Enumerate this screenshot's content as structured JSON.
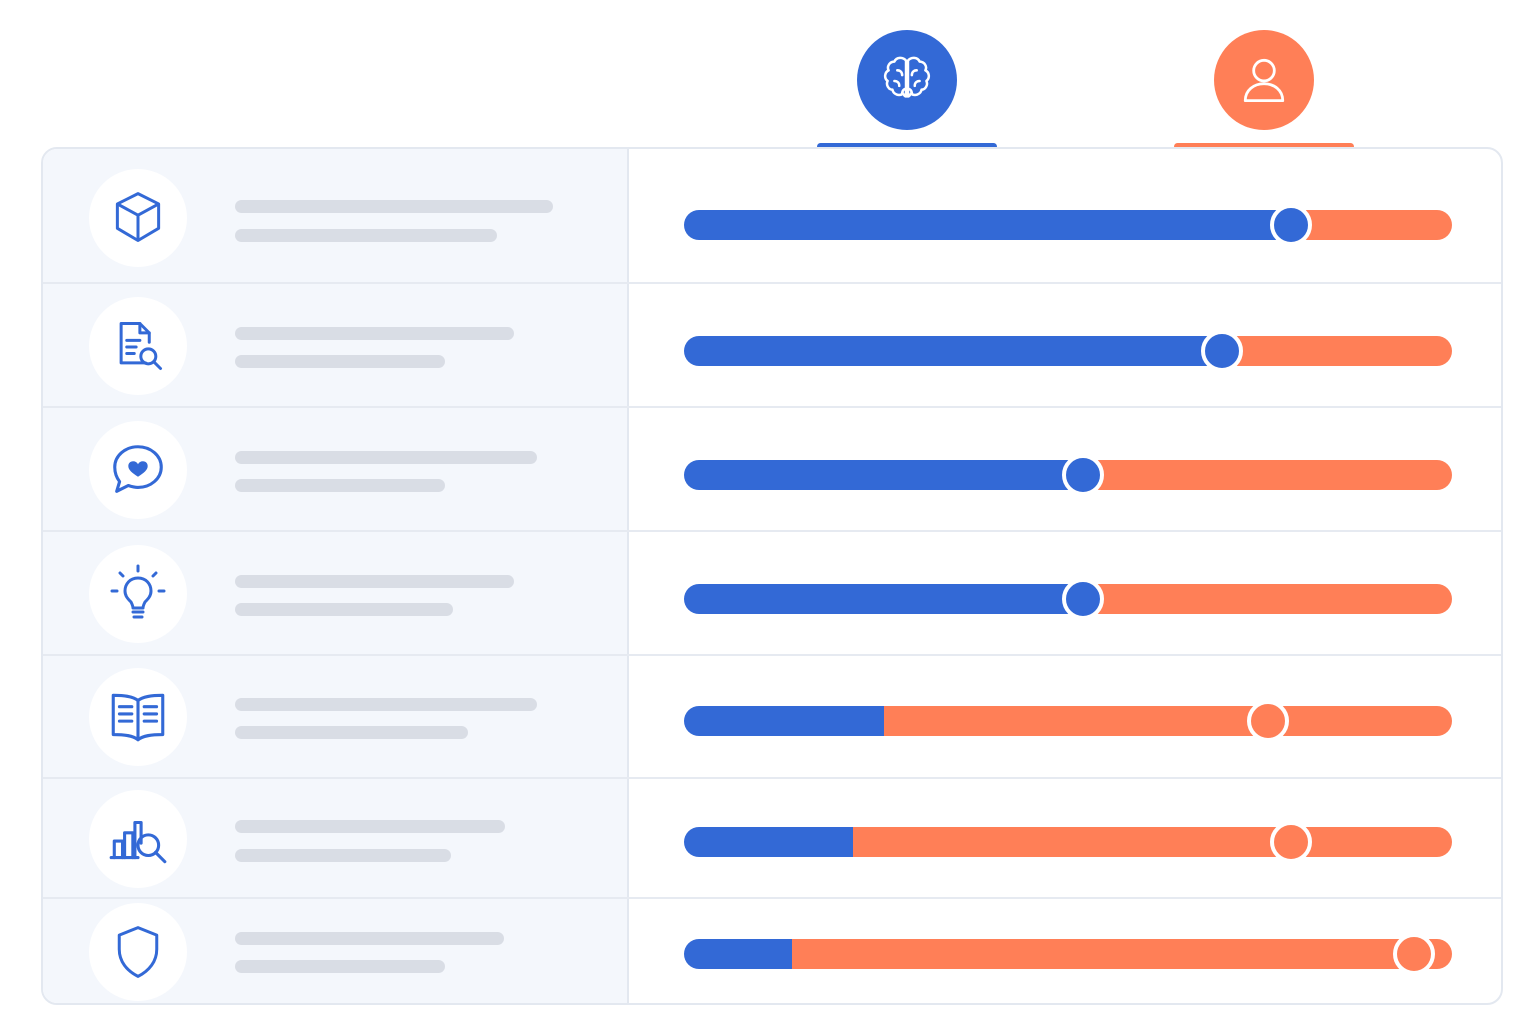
{
  "colors": {
    "ai": "#3369d6",
    "human": "#ff7f57",
    "line": "#d9dde5",
    "icon_stroke": "#3369d6"
  },
  "header": {
    "columns": [
      {
        "id": "ai",
        "icon": "brain-icon"
      },
      {
        "id": "human",
        "icon": "user-icon"
      }
    ]
  },
  "chart_data": {
    "type": "bar",
    "orientation": "horizontal",
    "stacked": true,
    "categories": [
      "",
      "",
      "",
      "",
      "",
      "",
      ""
    ],
    "row_icons": [
      "cube-icon",
      "document-search-icon",
      "chat-heart-icon",
      "lightbulb-icon",
      "open-book-icon",
      "bar-chart-search-icon",
      "shield-icon"
    ],
    "series": [
      {
        "values": [
          0.79,
          0.7,
          0.52,
          0.52,
          0.26,
          0.22,
          0.14
        ]
      },
      {
        "values": [
          0.21,
          0.3,
          0.48,
          0.48,
          0.74,
          0.78,
          0.86
        ]
      }
    ],
    "markers": [
      0.79,
      0.7,
      0.52,
      0.52,
      0.76,
      0.79,
      0.95
    ],
    "marker_series": [
      "ai",
      "ai",
      "ai",
      "ai",
      "human",
      "human",
      "human"
    ],
    "xlim": [
      0,
      1
    ]
  }
}
